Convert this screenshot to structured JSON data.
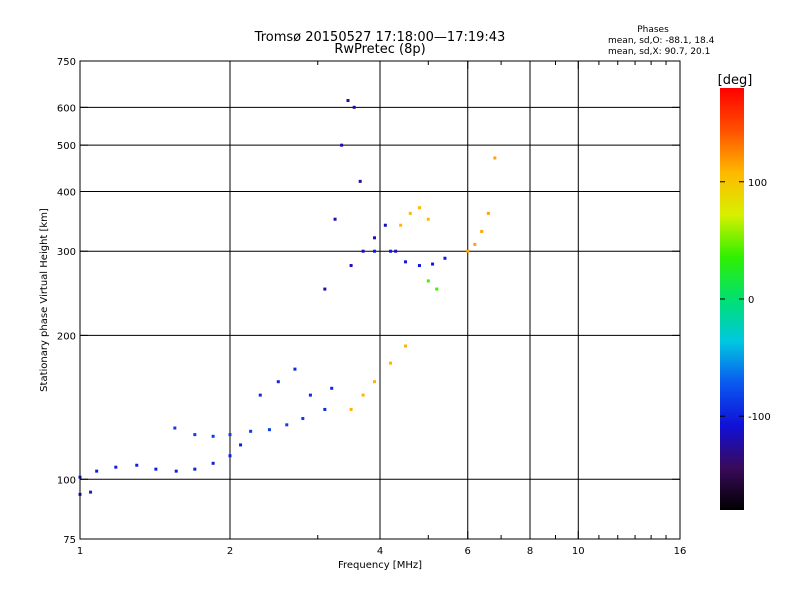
{
  "chart_data": {
    "type": "scatter",
    "title_line1": "Tromsø 20150527 17:18:00—17:19:43",
    "title_line2": "RwPretec (8p)",
    "stats": {
      "title": "Phases",
      "line_o": "mean, sd,O: -88.1, 18.4",
      "line_x": "mean, sd,X:  90.7, 20.1"
    },
    "xlabel": "Frequency [MHz]",
    "ylabel": "Stationary phase Virtual Height [km]",
    "x_scale": "log",
    "y_scale": "log",
    "xlim": [
      1,
      16
    ],
    "ylim": [
      75,
      750
    ],
    "x_ticks": [
      1,
      2,
      4,
      6,
      8,
      10,
      16
    ],
    "x_minor_ticks": [
      3,
      5,
      7,
      9,
      11,
      12,
      13,
      14,
      15
    ],
    "y_ticks": [
      75,
      100,
      200,
      300,
      400,
      500,
      600,
      750
    ],
    "x_grid": [
      2,
      4,
      6,
      8,
      10
    ],
    "y_grid": [
      100,
      200,
      300,
      400,
      500,
      600
    ],
    "grid": true,
    "colorbar": {
      "label": "[deg]",
      "min": -180,
      "max": 180,
      "ticks": [
        100,
        0,
        -100
      ],
      "colors": [
        "#000000",
        "#3a0a5a",
        "#1010d8",
        "#0a58f0",
        "#00c8e0",
        "#00e070",
        "#30f000",
        "#d8f000",
        "#ffb800",
        "#ff5000",
        "#ff0000"
      ]
    },
    "series": [
      {
        "x": [
          1.0,
          1.08,
          1.18,
          1.3,
          1.42,
          1.56,
          1.7,
          1.85,
          2.0,
          2.1
        ],
        "y": [
          101,
          104,
          106,
          107,
          105,
          104,
          105,
          108,
          112,
          118
        ],
        "phase": -100
      },
      {
        "x": [
          1.0,
          1.05
        ],
        "y": [
          93,
          94
        ],
        "phase": -100
      },
      {
        "x": [
          1.55,
          1.7,
          1.85,
          2.0,
          2.2,
          2.4,
          2.6,
          2.8
        ],
        "y": [
          128,
          124,
          123,
          124,
          126,
          127,
          130,
          134
        ],
        "phase": -85
      },
      {
        "x": [
          2.3,
          2.5,
          2.7,
          2.9,
          3.1,
          3.2
        ],
        "y": [
          150,
          160,
          170,
          150,
          140,
          155
        ],
        "phase": -95
      },
      {
        "x": [
          3.1,
          3.25,
          3.35,
          3.45,
          3.55,
          3.65
        ],
        "y": [
          250,
          350,
          500,
          620,
          600,
          420
        ],
        "phase": -120
      },
      {
        "x": [
          3.5,
          3.7,
          3.9,
          4.1,
          4.3
        ],
        "y": [
          280,
          300,
          320,
          340,
          300
        ],
        "phase": -115
      },
      {
        "x": [
          3.9,
          4.2,
          4.5,
          4.8,
          5.1,
          5.4
        ],
        "y": [
          300,
          300,
          285,
          280,
          282,
          290
        ],
        "phase": -105
      },
      {
        "x": [
          4.4,
          4.6,
          4.8,
          5.0
        ],
        "y": [
          340,
          360,
          370,
          350
        ],
        "phase": 105
      },
      {
        "x": [
          3.5,
          3.7,
          3.9,
          4.2,
          4.5
        ],
        "y": [
          140,
          150,
          160,
          175,
          190
        ],
        "phase": 110
      },
      {
        "x": [
          5.0,
          5.2
        ],
        "y": [
          260,
          250
        ],
        "phase": 40
      },
      {
        "x": [
          6.0,
          6.2,
          6.4,
          6.6,
          6.8
        ],
        "y": [
          300,
          310,
          330,
          360,
          470
        ],
        "phase": 115
      }
    ]
  }
}
